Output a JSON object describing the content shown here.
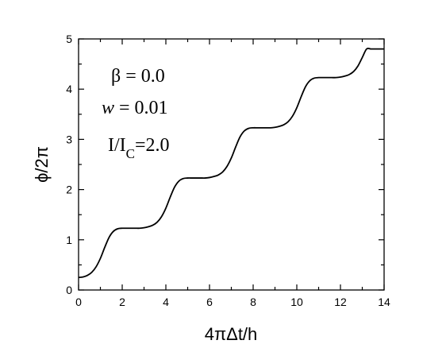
{
  "chart_data": {
    "type": "line",
    "title": "",
    "xlabel": "4πΔt/h",
    "ylabel": "ϕ/2π",
    "xlim": [
      0,
      14
    ],
    "ylim": [
      0,
      5
    ],
    "x_ticks": [
      "0",
      "2",
      "4",
      "6",
      "8",
      "10",
      "12",
      "14"
    ],
    "y_ticks": [
      "0",
      "1",
      "2",
      "3",
      "4",
      "5"
    ],
    "grid": false,
    "legend": "none",
    "annotations": {
      "beta": "β = 0.0",
      "w_symbol": "w",
      "w_value": " = 0.01",
      "current_I": "I/I",
      "current_sub": "C",
      "current_value": "=2.0"
    },
    "series": [
      {
        "x": [
          0.0,
          0.2,
          0.4,
          0.6,
          0.8,
          1.0,
          1.2,
          1.4,
          1.6,
          1.8,
          2.0,
          2.2,
          2.4,
          2.6,
          2.8,
          3.0,
          3.2,
          3.4,
          3.6,
          3.8,
          4.0,
          4.2,
          4.4,
          4.6,
          4.8,
          5.0,
          5.2,
          5.4,
          5.6,
          5.8,
          6.0,
          6.2,
          6.4,
          6.6,
          6.8,
          7.0,
          7.2,
          7.4,
          7.6,
          7.8,
          8.0,
          8.2,
          8.4,
          8.6,
          8.8,
          9.0,
          9.2,
          9.4,
          9.6,
          9.8,
          10.0,
          10.2,
          10.4,
          10.6,
          10.8,
          11.0,
          11.2,
          11.4,
          11.6,
          11.8,
          12.0,
          12.2,
          12.4,
          12.6,
          12.8,
          13.0,
          13.2,
          13.4,
          13.6,
          13.8,
          14.0
        ],
        "y": [
          0.25,
          0.26,
          0.29,
          0.35,
          0.46,
          0.63,
          0.85,
          1.05,
          1.17,
          1.22,
          1.23,
          1.23,
          1.23,
          1.23,
          1.23,
          1.24,
          1.26,
          1.29,
          1.35,
          1.46,
          1.63,
          1.85,
          2.05,
          2.17,
          2.22,
          2.23,
          2.23,
          2.23,
          2.23,
          2.23,
          2.24,
          2.26,
          2.29,
          2.35,
          2.46,
          2.63,
          2.85,
          3.05,
          3.17,
          3.22,
          3.23,
          3.23,
          3.23,
          3.23,
          3.23,
          3.24,
          3.26,
          3.29,
          3.35,
          3.46,
          3.63,
          3.85,
          4.05,
          4.17,
          4.22,
          4.23,
          4.23,
          4.23,
          4.23,
          4.23,
          4.24,
          4.26,
          4.29,
          4.35,
          4.46,
          4.63,
          4.8,
          4.8,
          4.8,
          4.8,
          4.8
        ]
      }
    ]
  }
}
